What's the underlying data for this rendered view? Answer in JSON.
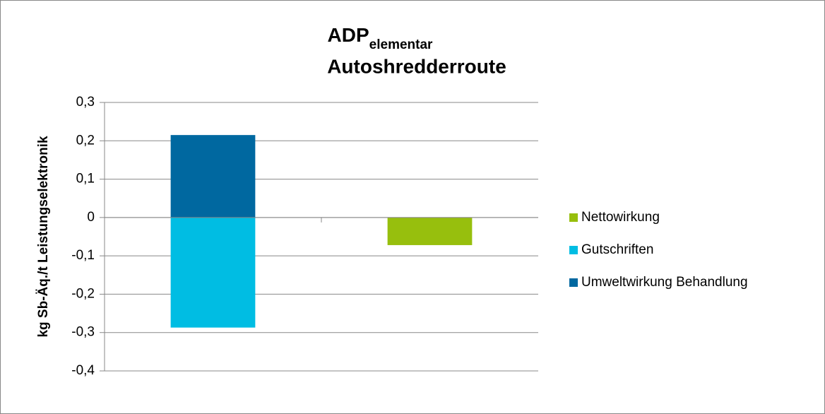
{
  "chart_data": {
    "type": "stacked_bar",
    "title": "ADP",
    "title_subscript": "elementar",
    "subtitle": "Autoshredderroute",
    "y_label": "kg Sb-Äq./t Leistungselektronik",
    "categories": [
      null,
      null
    ],
    "series": [
      {
        "name": "Umweltwirkung Behandlung",
        "color": "#0068a0",
        "values": [
          0.215,
          null
        ]
      },
      {
        "name": "Gutschriften",
        "color": "#00bde3",
        "values": [
          -0.287,
          null
        ]
      },
      {
        "name": "Nettowirkung",
        "color": "#97bf0d",
        "values": [
          null,
          -0.072
        ]
      }
    ],
    "ylim": [
      -0.4,
      0.3
    ],
    "yticks": [
      {
        "value": -0.4,
        "label": "-0,4"
      },
      {
        "value": -0.3,
        "label": "-0,3"
      },
      {
        "value": -0.2,
        "label": "-0,2"
      },
      {
        "value": -0.1,
        "label": "-0,1"
      },
      0,
      {
        "value": 0.1,
        "label": "0,1"
      },
      {
        "value": 0.2,
        "label": "0,2"
      },
      {
        "value": 0.3,
        "label": "0,3"
      }
    ],
    "grid": true,
    "legend": "right"
  }
}
